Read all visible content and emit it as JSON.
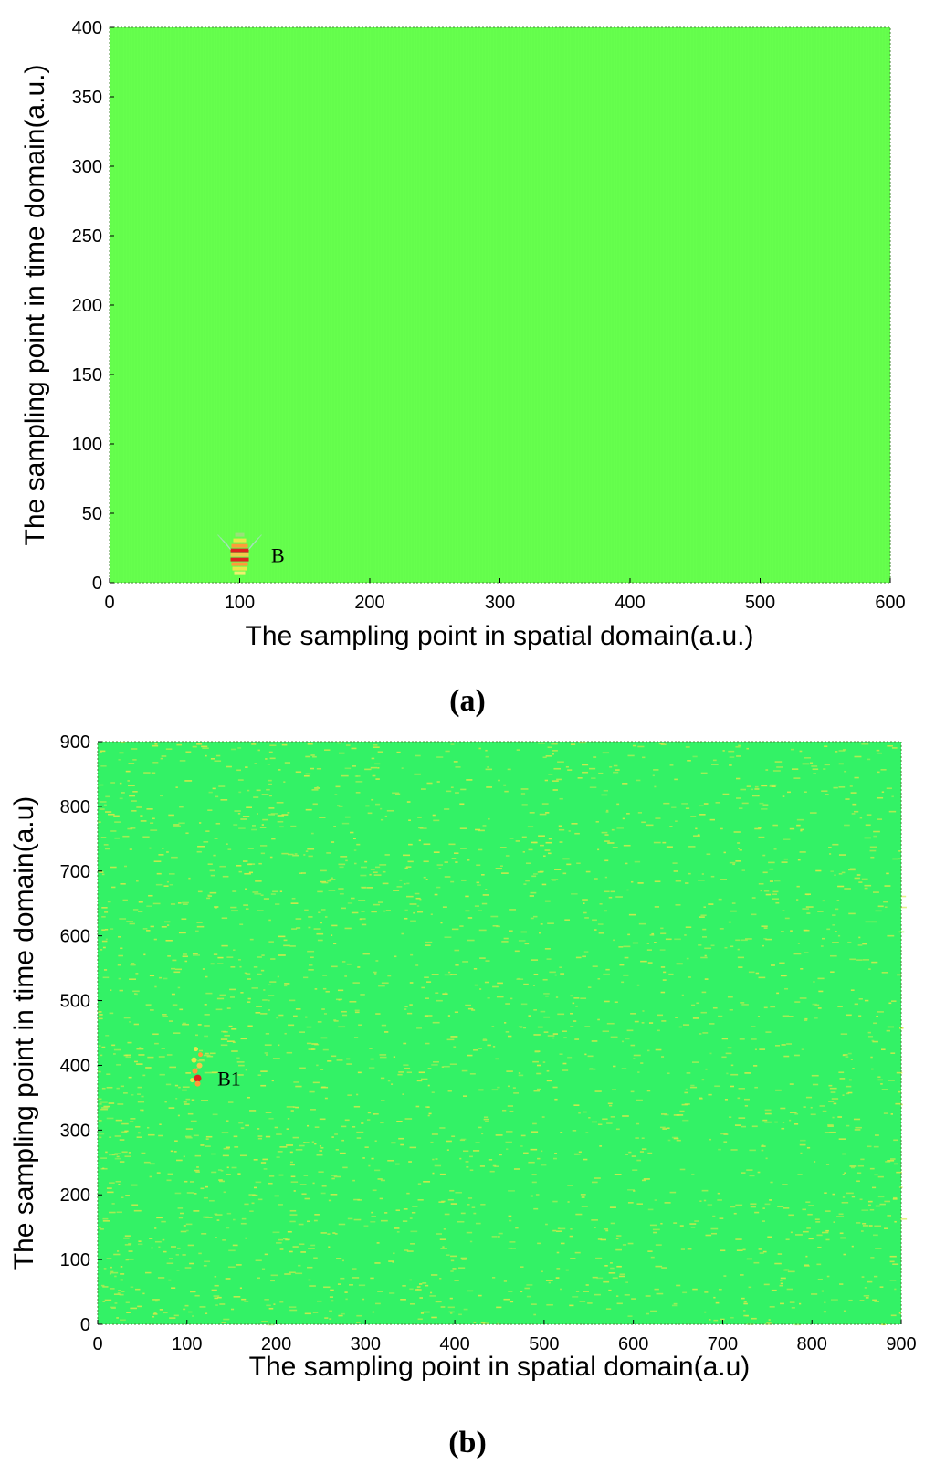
{
  "chart_data": [
    {
      "type": "heatmap",
      "panel_label": "(a)",
      "panel_letter": "a",
      "xlabel": "The sampling point in spatial domain(a.u.)",
      "ylabel": "The sampling point in time domain(a.u.)",
      "xlim": [
        0,
        600
      ],
      "ylim": [
        0,
        400
      ],
      "xticks": [
        0,
        100,
        200,
        300,
        400,
        500,
        600
      ],
      "yticks": [
        0,
        50,
        100,
        150,
        200,
        250,
        300,
        350,
        400
      ],
      "background_color": "#66ff4d",
      "grid": false,
      "annotations": [
        {
          "label": "B",
          "x": 100,
          "y": 20,
          "label_x": 120,
          "label_y": 20
        }
      ]
    },
    {
      "type": "heatmap",
      "panel_label": "(b)",
      "panel_letter": "b",
      "xlabel": "The sampling point in spatial domain(a.u)",
      "ylabel": "The sampling point in time domain(a.u)",
      "xlim": [
        0,
        900
      ],
      "ylim": [
        0,
        900
      ],
      "xticks": [
        0,
        100,
        200,
        300,
        400,
        500,
        600,
        700,
        800,
        900
      ],
      "yticks": [
        0,
        100,
        200,
        300,
        400,
        500,
        600,
        700,
        800,
        900
      ],
      "background_color": "#33f266",
      "noise_color": "#d8e84a",
      "grid": false,
      "annotations": [
        {
          "label": "B1",
          "x": 112,
          "y": 380,
          "label_x": 130,
          "label_y": 380
        }
      ]
    }
  ]
}
